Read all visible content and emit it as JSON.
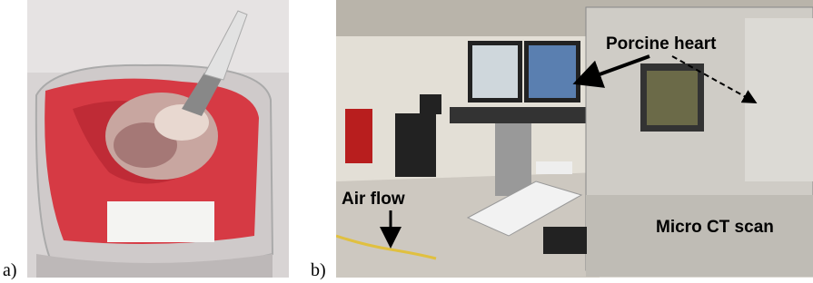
{
  "panels": [
    {
      "label": "a)"
    },
    {
      "label": "b)",
      "annotations": [
        "Porcine heart",
        "Air flow",
        "Micro CT scan"
      ]
    }
  ]
}
